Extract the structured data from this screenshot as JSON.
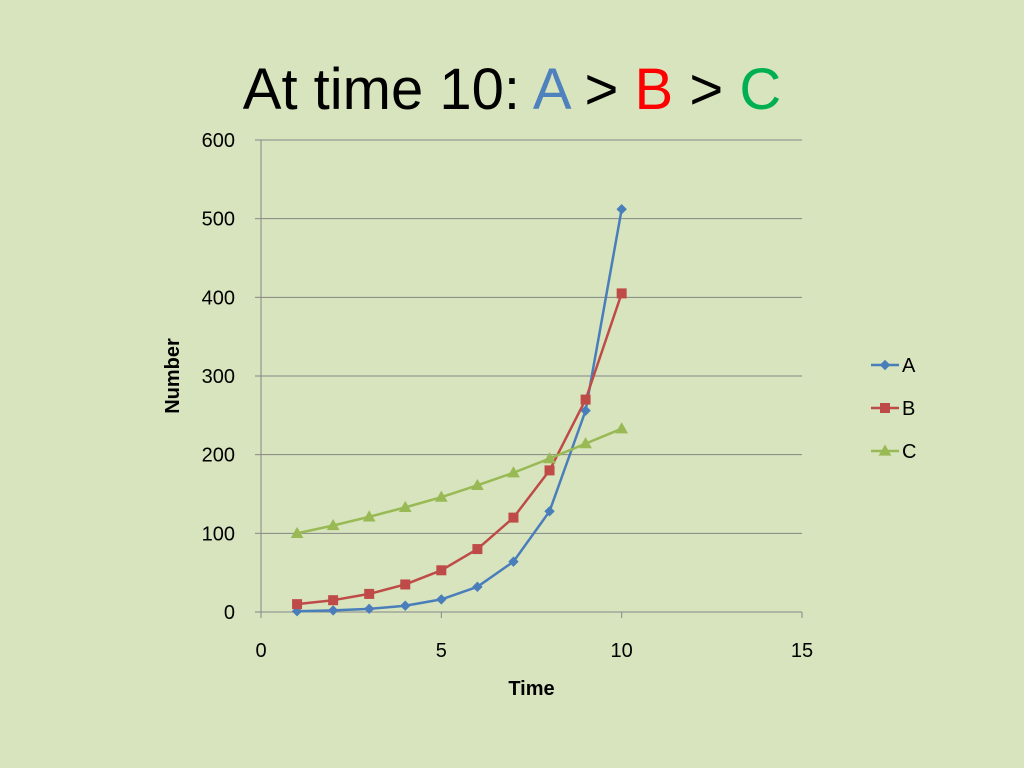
{
  "title": {
    "prefix": "At time 10: ",
    "a": "A",
    "sep1": " > ",
    "b": "B",
    "sep2": " > ",
    "c": "C",
    "colors": {
      "text": "#000000",
      "a": "#4f81bd",
      "b": "#ff0000",
      "c": "#00b050"
    }
  },
  "chart_data": {
    "type": "line",
    "title": "At time 10: A > B > C",
    "xlabel": "Time",
    "ylabel": "Number",
    "xlim": [
      0,
      15
    ],
    "ylim": [
      0,
      600
    ],
    "xticks": [
      0,
      5,
      10,
      15
    ],
    "yticks": [
      0,
      100,
      200,
      300,
      400,
      500,
      600
    ],
    "grid": "horizontal",
    "legend": "right",
    "series": [
      {
        "name": "A",
        "color": "#4a7ebb",
        "marker": "diamond",
        "x": [
          1,
          2,
          3,
          4,
          5,
          6,
          7,
          8,
          9,
          10
        ],
        "y": [
          1,
          2,
          4,
          8,
          16,
          32,
          64,
          128,
          256,
          512
        ]
      },
      {
        "name": "B",
        "color": "#be4b48",
        "marker": "square",
        "x": [
          1,
          2,
          3,
          4,
          5,
          6,
          7,
          8,
          9,
          10
        ],
        "y": [
          10,
          15,
          23,
          35,
          53,
          80,
          120,
          180,
          270,
          405
        ]
      },
      {
        "name": "C",
        "color": "#98b954",
        "marker": "triangle",
        "x": [
          1,
          2,
          3,
          4,
          5,
          6,
          7,
          8,
          9,
          10
        ],
        "y": [
          100,
          110,
          121,
          133,
          146,
          161,
          177,
          195,
          214,
          233
        ]
      }
    ]
  }
}
